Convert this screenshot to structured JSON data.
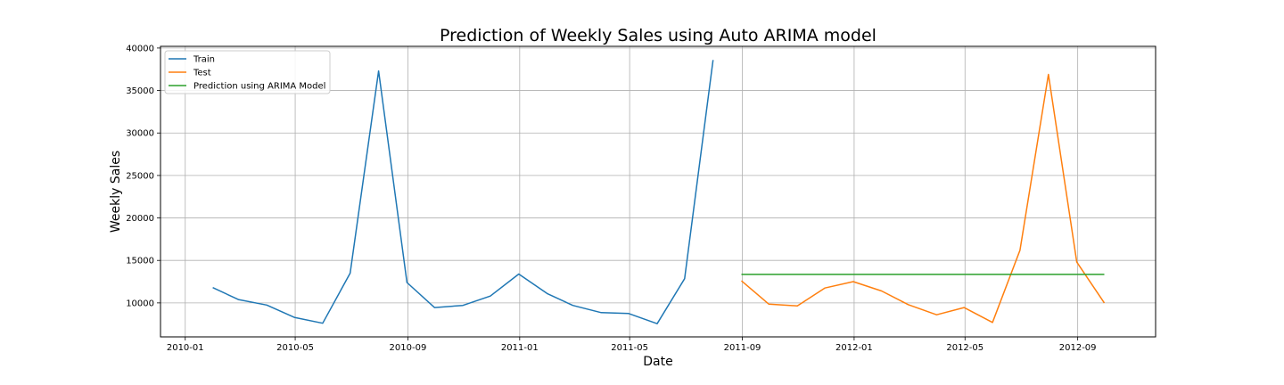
{
  "chart_data": {
    "type": "line",
    "title": "Prediction of Weekly Sales using Auto ARIMA model",
    "xlabel": "Date",
    "ylabel": "Weekly Sales",
    "xlim": [
      "2009-12-05",
      "2012-11-25"
    ],
    "ylim": [
      6000,
      40200
    ],
    "x_ticks": [
      {
        "date": "2010-01-01",
        "label": "2010-01"
      },
      {
        "date": "2010-05-01",
        "label": "2010-05"
      },
      {
        "date": "2010-09-01",
        "label": "2010-09"
      },
      {
        "date": "2011-01-01",
        "label": "2011-01"
      },
      {
        "date": "2011-05-01",
        "label": "2011-05"
      },
      {
        "date": "2011-09-01",
        "label": "2011-09"
      },
      {
        "date": "2012-01-01",
        "label": "2012-01"
      },
      {
        "date": "2012-05-01",
        "label": "2012-05"
      },
      {
        "date": "2012-09-01",
        "label": "2012-09"
      }
    ],
    "y_ticks": [
      {
        "value": 10000,
        "label": "10000"
      },
      {
        "value": 15000,
        "label": "15000"
      },
      {
        "value": 20000,
        "label": "20000"
      },
      {
        "value": 25000,
        "label": "25000"
      },
      {
        "value": 30000,
        "label": "30000"
      },
      {
        "value": 35000,
        "label": "35000"
      },
      {
        "value": 40000,
        "label": "40000"
      }
    ],
    "grid": true,
    "legend_position": "top-left",
    "series": [
      {
        "name": "Train",
        "color": "#1f77b4",
        "x": [
          "2010-01-31",
          "2010-02-28",
          "2010-03-31",
          "2010-04-30",
          "2010-05-31",
          "2010-06-30",
          "2010-07-31",
          "2010-08-31",
          "2010-09-30",
          "2010-10-31",
          "2010-11-30",
          "2010-12-31",
          "2011-01-31",
          "2011-02-28",
          "2011-03-31",
          "2011-04-30",
          "2011-05-31",
          "2011-06-30",
          "2011-07-31"
        ],
        "y": [
          11800,
          10400,
          9750,
          8300,
          7600,
          13500,
          37300,
          12400,
          9450,
          9700,
          10800,
          13400,
          11100,
          9700,
          8850,
          8750,
          7550,
          12850,
          38600
        ]
      },
      {
        "name": "Test",
        "color": "#ff7f0e",
        "x": [
          "2011-08-31",
          "2011-09-30",
          "2011-10-31",
          "2011-11-30",
          "2011-12-31",
          "2012-01-31",
          "2012-02-29",
          "2012-03-31",
          "2012-04-30",
          "2012-05-31",
          "2012-06-30",
          "2012-07-31",
          "2012-08-31",
          "2012-09-30"
        ],
        "y": [
          12600,
          9850,
          9650,
          11750,
          12500,
          11400,
          9800,
          8600,
          9450,
          7700,
          16200,
          36900,
          14800,
          10000
        ]
      },
      {
        "name": "Prediction using ARIMA Model",
        "color": "#2ca02c",
        "x": [
          "2011-08-31",
          "2012-09-30"
        ],
        "y": [
          13350,
          13350
        ]
      }
    ]
  }
}
